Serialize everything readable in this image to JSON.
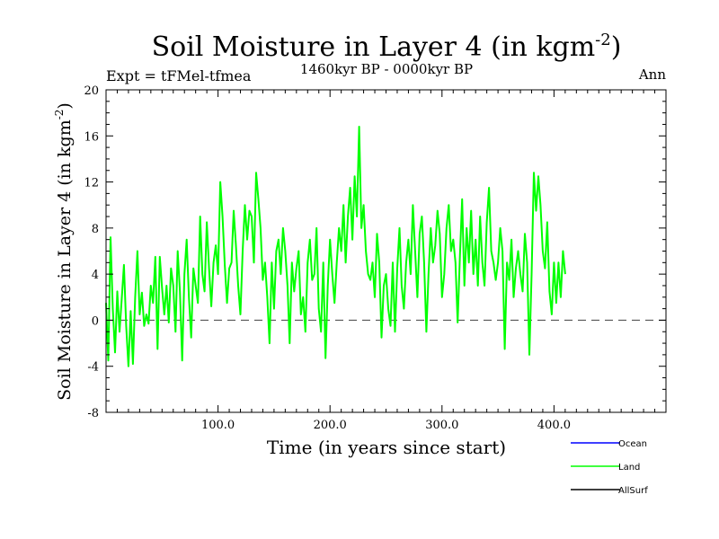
{
  "chart_data": {
    "type": "line",
    "title": "Soil Moisture in Layer 4 (in kgm",
    "title_sup": "-2",
    "title_end": ")",
    "subtitle": "1460kyr BP - 0000kyr BP",
    "left_label": "Expt = tFMel-tfmea",
    "right_label": "Ann",
    "xlabel": "Time (in years since start)",
    "ylabel": "Soil Moisture in Layer 4 (in kgm",
    "ylabel_sup": "-2",
    "ylabel_end": ")",
    "xlim": [
      0,
      500
    ],
    "ylim": [
      -8,
      20
    ],
    "x_ticks": [
      100,
      200,
      300,
      400
    ],
    "x_tick_labels": [
      "100.0",
      "200.0",
      "300.0",
      "400.0"
    ],
    "y_ticks": [
      -8,
      -4,
      0,
      4,
      8,
      12,
      16,
      20
    ],
    "y_tick_labels": [
      "-8",
      "-4",
      "0",
      "4",
      "8",
      "12",
      "16",
      "20"
    ],
    "zero_line": 0,
    "legend": [
      {
        "name": "Ocean",
        "color": "#0000ff"
      },
      {
        "name": "Land",
        "color": "#00ff00"
      },
      {
        "name": "AllSurf",
        "color": "#000000"
      }
    ],
    "series": [
      {
        "name": "Land",
        "color": "#00ff00",
        "x_start": 0,
        "x_step": 2,
        "values": [
          1.5,
          -3.5,
          7.2,
          1.0,
          -2.8,
          2.5,
          -1.0,
          1.8,
          4.8,
          -0.5,
          -4.0,
          0.8,
          -3.8,
          2.0,
          6.0,
          0.5,
          2.4,
          -0.5,
          0.5,
          -0.3,
          3.0,
          1.5,
          5.5,
          -2.5,
          5.5,
          2.8,
          0.5,
          3.0,
          -0.2,
          4.5,
          3.0,
          -1.0,
          6.0,
          2.5,
          -3.5,
          4.0,
          7.0,
          2.0,
          -1.5,
          4.5,
          3.0,
          1.5,
          9.0,
          4.0,
          2.5,
          8.5,
          4.5,
          1.2,
          5.0,
          6.5,
          4.0,
          12.0,
          9.0,
          4.8,
          1.5,
          4.5,
          5.0,
          9.5,
          6.5,
          3.0,
          0.5,
          6.0,
          10.0,
          7.0,
          9.5,
          9.0,
          5.0,
          12.8,
          10.5,
          8.0,
          3.5,
          5.0,
          2.0,
          -2.0,
          5.0,
          1.0,
          6.0,
          7.0,
          4.0,
          8.0,
          6.0,
          3.0,
          -2.0,
          5.0,
          2.5,
          4.5,
          6.0,
          0.5,
          2.0,
          -1.0,
          5.0,
          7.0,
          3.5,
          4.0,
          8.0,
          1.0,
          -1.0,
          5.0,
          -3.3,
          3.0,
          7.0,
          4.0,
          1.5,
          5.0,
          8.0,
          6.0,
          10.0,
          5.0,
          9.0,
          11.5,
          7.0,
          12.5,
          9.0,
          16.8,
          8.0,
          10.0,
          6.0,
          4.0,
          3.5,
          5.0,
          2.0,
          7.5,
          5.0,
          -1.5,
          3.0,
          4.0,
          1.0,
          -0.5,
          5.0,
          -1.0,
          4.5,
          8.0,
          3.0,
          1.0,
          5.0,
          7.0,
          4.0,
          10.0,
          6.0,
          2.0,
          7.5,
          9.0,
          5.0,
          -1.0,
          4.0,
          8.0,
          5.0,
          6.5,
          9.5,
          7.5,
          2.0,
          4.0,
          8.0,
          10.0,
          6.0,
          7.0,
          5.0,
          -0.2,
          5.5,
          10.5,
          3.0,
          8.0,
          5.0,
          9.5,
          4.0,
          7.0,
          3.0,
          9.0,
          5.0,
          3.0,
          8.5,
          11.5,
          6.0,
          5.0,
          3.5,
          5.0,
          8.0,
          6.0,
          -2.5,
          5.0,
          3.5,
          7.0,
          2.0,
          4.5,
          6.0,
          4.0,
          2.5,
          7.5,
          5.0,
          -3.0,
          4.0,
          12.8,
          9.5,
          12.5,
          10.0,
          6.0,
          4.5,
          8.5,
          2.5,
          0.5,
          5.0,
          1.5,
          5.0,
          2.0,
          6.0,
          4.0
        ]
      }
    ]
  }
}
